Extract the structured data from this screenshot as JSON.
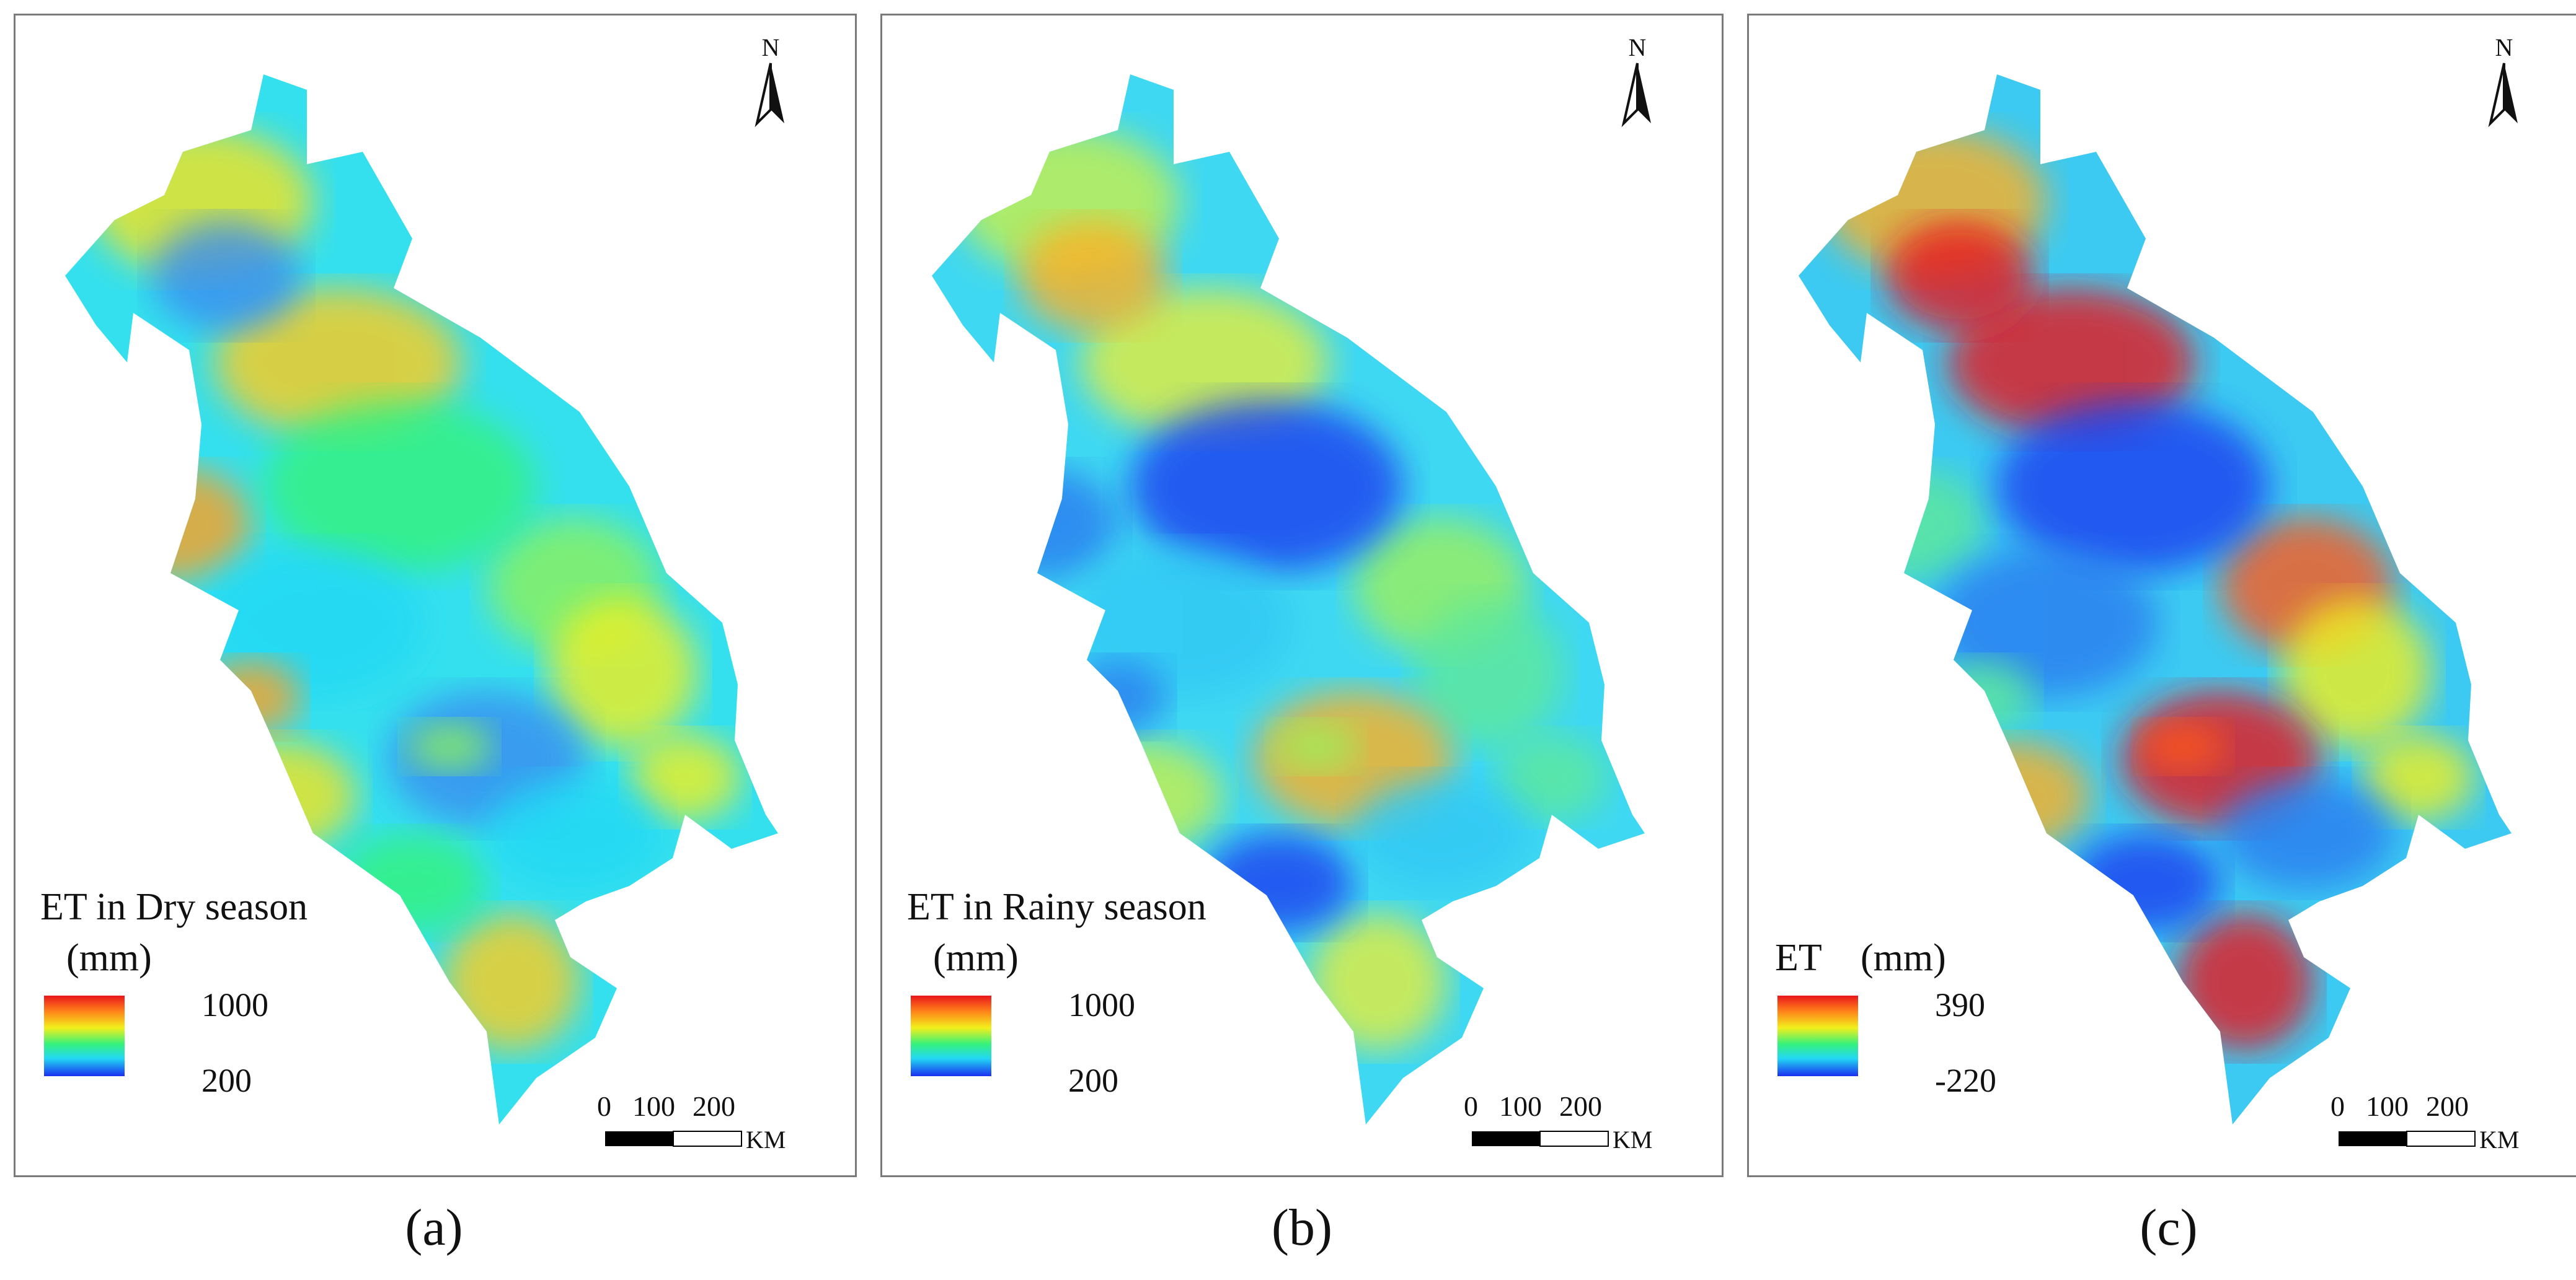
{
  "colors": {
    "ramp": [
      "#e8161c",
      "#ff7a1a",
      "#f2f01c",
      "#36f27a",
      "#22d8f4",
      "#1a2ff0"
    ],
    "frame": "#7a7a7a",
    "background": "#ffffff"
  },
  "panels": [
    {
      "legend": {
        "title": "ET in Dry season",
        "unit": "(mm)",
        "max": "1000",
        "min": "200"
      },
      "north": "N",
      "scale": {
        "ticks": [
          "0",
          "100",
          "200"
        ],
        "unit": "KM"
      },
      "caption": "(a)",
      "fill": "#35e0ee",
      "patches": [
        "#f6e41c",
        "#ffcc1a",
        "#8ef25a",
        "#f2f01c",
        "#ffa020",
        "#36f27a",
        "#22d8f4",
        "#3a8cf0"
      ]
    },
    {
      "legend": {
        "title": "ET in Rainy season",
        "unit": "(mm)",
        "max": "1000",
        "min": "200"
      },
      "north": "N",
      "scale": {
        "ticks": [
          "0",
          "100",
          "200"
        ],
        "unit": "KM"
      },
      "caption": "(b)",
      "fill": "#3fd8f2",
      "patches": [
        "#c8f04a",
        "#e6ee3a",
        "#9cf05c",
        "#5ee89a",
        "#2a7cf0",
        "#1a3ef0",
        "#30c8f4",
        "#ffb020"
      ]
    },
    {
      "legend": {
        "title": "ET",
        "unit": "(mm)",
        "max": "390",
        "min": "-220"
      },
      "north": "N",
      "scale": {
        "ticks": [
          "0",
          "100",
          "200"
        ],
        "unit": "KM"
      },
      "caption": "(c)",
      "fill": "#3ccaf2",
      "patches": [
        "#ffb020",
        "#e8161c",
        "#ff5a1a",
        "#f2f01c",
        "#5ee89a",
        "#1a3ef0",
        "#2a7cf0",
        "#e8161c"
      ]
    }
  ]
}
